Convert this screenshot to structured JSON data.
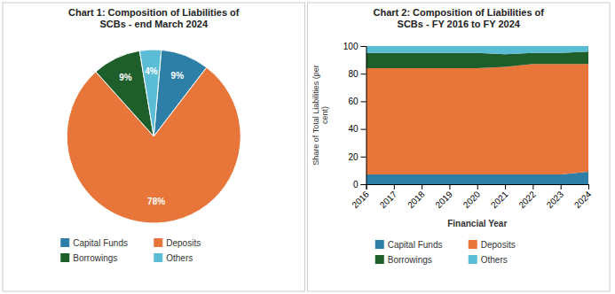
{
  "chart_data": [
    {
      "type": "pie",
      "title": "Chart 1: Composition of Liabilities of\nSCBs - end March 2024",
      "categories": [
        "Capital Funds",
        "Deposits",
        "Borrowings",
        "Others"
      ],
      "values": [
        9,
        78,
        9,
        4
      ],
      "value_labels": [
        "9%",
        "78%",
        "9%",
        "4%"
      ],
      "colors": [
        "#2e7fa8",
        "#e8763a",
        "#1e5e2a",
        "#5bbcd6"
      ],
      "data_labels": true,
      "legend": "bottom"
    },
    {
      "type": "area",
      "stacked": true,
      "title": "Chart 2: Composition of Liabilities of\nSCBs - FY 2016 to FY 2024",
      "xlabel": "Financial Year",
      "ylabel": "Share of Total Liabilities (per\ncent)",
      "x": [
        2016,
        2017,
        2018,
        2019,
        2020,
        2021,
        2022,
        2023,
        2024
      ],
      "xlim": [
        2016,
        2024
      ],
      "xticks": [
        2016,
        2017,
        2018,
        2019,
        2020,
        2021,
        2022,
        2023,
        2024
      ],
      "ylim": [
        0,
        100
      ],
      "yticks": [
        0,
        20,
        40,
        60,
        80,
        100
      ],
      "series": [
        {
          "name": "Capital Funds",
          "color": "#2e7fa8",
          "values": [
            7,
            7,
            7,
            7,
            7,
            7,
            7,
            7,
            9
          ]
        },
        {
          "name": "Deposits",
          "color": "#e8763a",
          "values": [
            77,
            77,
            77,
            77,
            77,
            78,
            80,
            80,
            78
          ]
        },
        {
          "name": "Borrowings",
          "color": "#1e5e2a",
          "values": [
            11,
            11,
            11,
            11,
            11,
            9,
            8,
            8,
            9
          ]
        },
        {
          "name": "Others",
          "color": "#5bbcd6",
          "values": [
            5,
            5,
            5,
            5,
            5,
            6,
            5,
            5,
            4
          ]
        }
      ],
      "legend": "bottom"
    }
  ]
}
